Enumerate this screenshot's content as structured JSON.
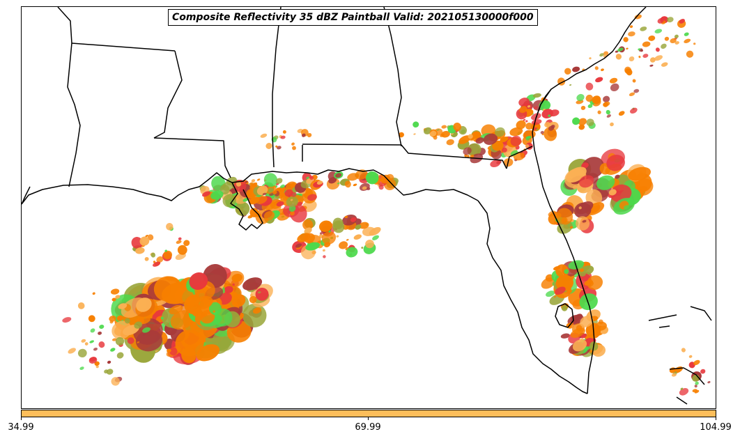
{
  "title": "Composite Reflectivity 35 dBZ Paintball Valid: 202105130000f000",
  "colors": {
    "orange": "#f77f00",
    "light_orange": "#fbb054",
    "red": "#e8383d",
    "dark_red": "#a83a3a",
    "green": "#4cd94c",
    "olive": "#9aa63a",
    "colorbar_fill": "#fdbe5b",
    "border": "#000000"
  },
  "colorbar": {
    "ticks": [
      "34.99",
      "69.99",
      "104.99"
    ]
  }
}
